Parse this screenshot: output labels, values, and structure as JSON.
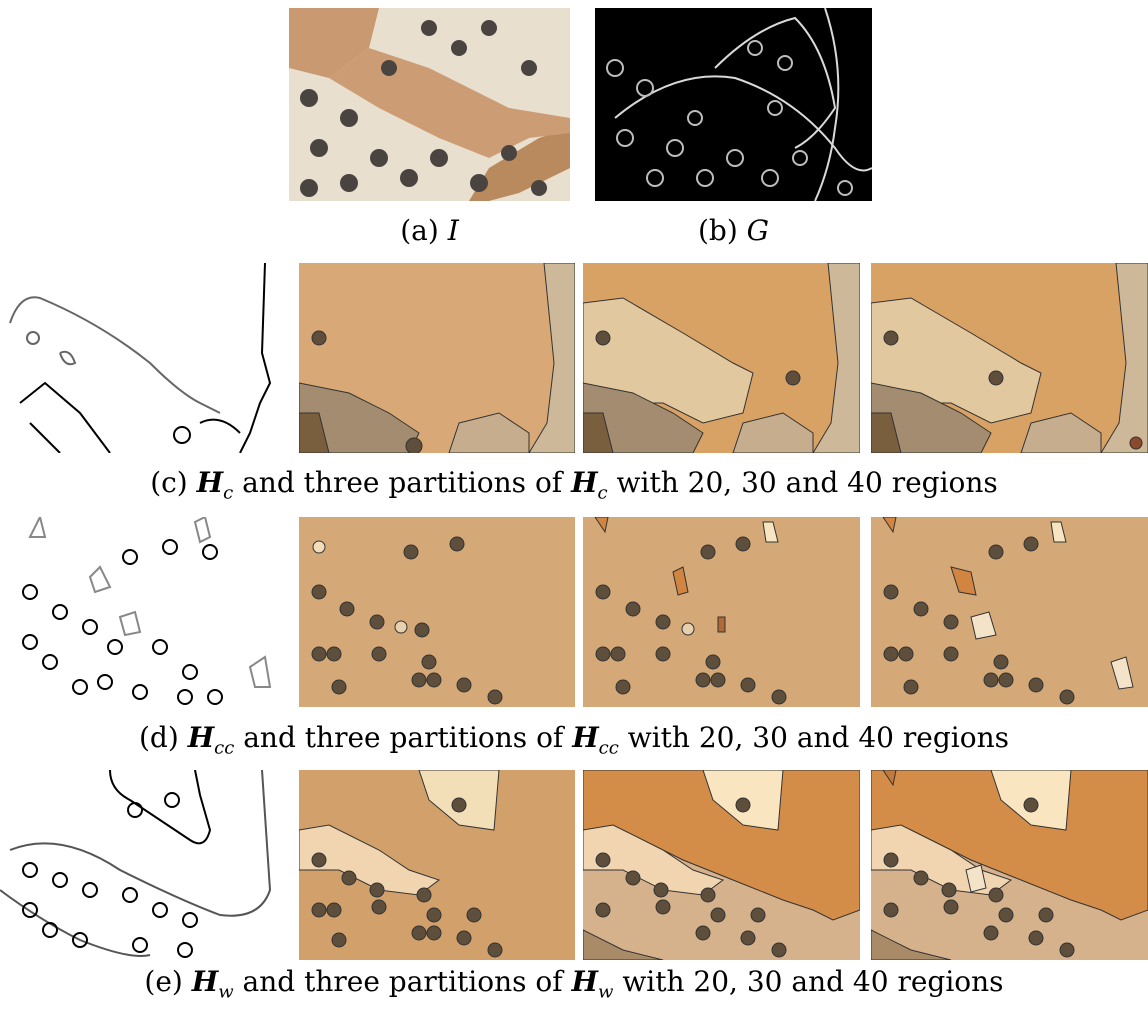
{
  "figure": {
    "top": {
      "a_label": "(a)",
      "a_symbol": "I",
      "b_label": "(b)",
      "b_symbol": "G"
    },
    "rows": [
      {
        "id": "c",
        "caption_prefix": "(c)",
        "symbol": "H",
        "subscript": "c",
        "caption_mid": "and three partitions of",
        "caption_suffix": "with 20, 30 and 40 regions"
      },
      {
        "id": "d",
        "caption_prefix": "(d)",
        "symbol": "H",
        "subscript": "cc",
        "caption_mid": "and three partitions of",
        "caption_suffix": "with 20, 30 and 40 regions"
      },
      {
        "id": "e",
        "caption_prefix": "(e)",
        "symbol": "H",
        "subscript": "w",
        "caption_mid": "and three partitions of",
        "caption_suffix": "with 20, 30 and 40 regions"
      }
    ]
  }
}
